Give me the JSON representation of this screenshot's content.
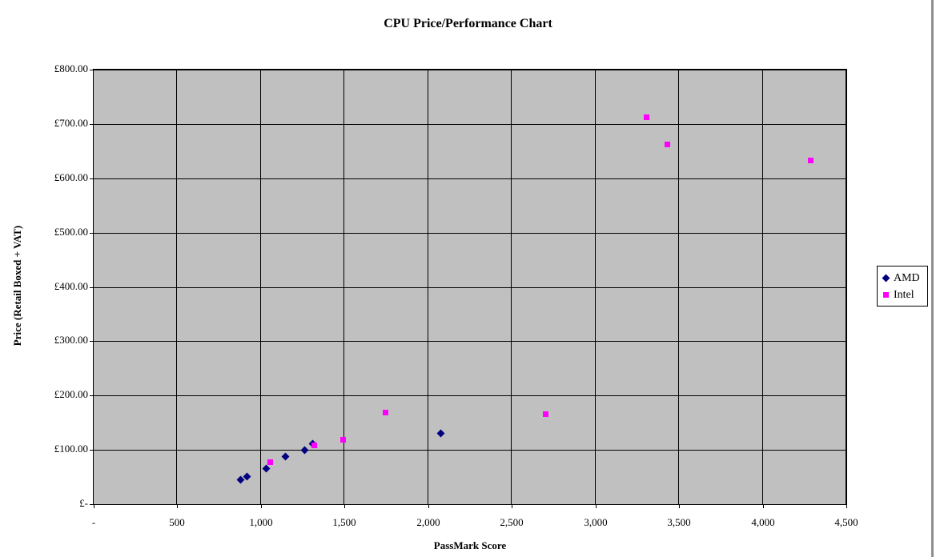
{
  "page": {
    "background": "#FFFFFF",
    "window_edge_color": "#8E8E8E"
  },
  "chart_data": {
    "type": "scatter",
    "title": "CPU Price/Performance Chart",
    "xlabel": "PassMark Score",
    "ylabel": "Price (Retail Boxed + VAT)",
    "xlim": [
      0,
      4500
    ],
    "ylim": [
      0,
      800
    ],
    "x_tick_interval": 500,
    "y_tick_interval": 100,
    "x_tick_labels": [
      "-",
      "500",
      "1,000",
      "1,500",
      "2,000",
      "2,500",
      "3,000",
      "3,500",
      "4,000",
      "4,500"
    ],
    "y_tick_labels": [
      "£-",
      "£100.00",
      "£200.00",
      "£300.00",
      "£400.00",
      "£500.00",
      "£600.00",
      "£700.00",
      "£800.00"
    ],
    "grid": true,
    "plot_background": "#C0C0C0",
    "gridline_color": "#000000",
    "legend_position": "right",
    "series": [
      {
        "name": "AMD",
        "marker": "diamond",
        "color": "#000080",
        "points": [
          [
            880,
            45
          ],
          [
            915,
            51
          ],
          [
            1030,
            66
          ],
          [
            1145,
            87
          ],
          [
            1260,
            100
          ],
          [
            1310,
            111
          ],
          [
            2075,
            131
          ]
        ]
      },
      {
        "name": "Intel",
        "marker": "square",
        "color": "#FF00FF",
        "points": [
          [
            1055,
            78
          ],
          [
            1320,
            109
          ],
          [
            1490,
            118
          ],
          [
            1745,
            168
          ],
          [
            2700,
            166
          ],
          [
            3305,
            713
          ],
          [
            3430,
            662
          ],
          [
            4285,
            633
          ]
        ]
      }
    ]
  }
}
